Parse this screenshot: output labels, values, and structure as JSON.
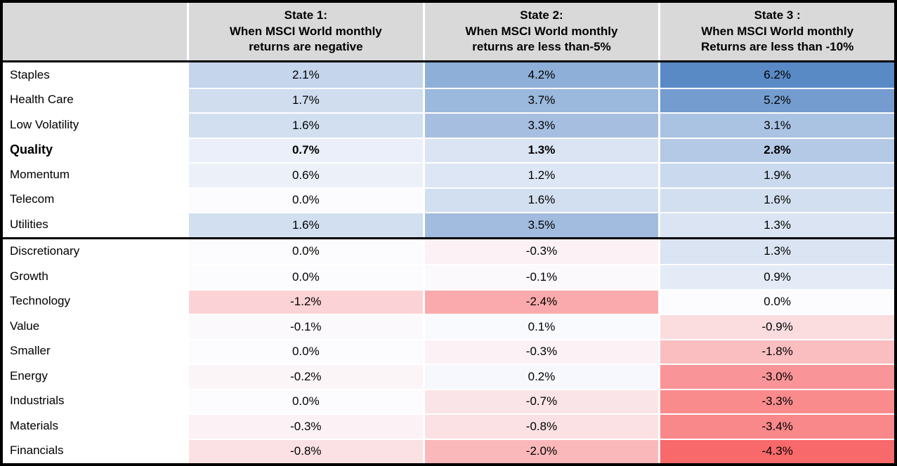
{
  "style": {
    "header_bg": "#d9d9d9",
    "border_color": "#000000",
    "text_color": "#000000"
  },
  "chart_data": {
    "type": "heatmap",
    "unit": "%",
    "columns": [
      {
        "lines": [
          "State 1:",
          "When MSCI World monthly",
          "returns are negative"
        ]
      },
      {
        "lines": [
          "State 2:",
          "When MSCI World monthly",
          "returns are less than-5%"
        ]
      },
      {
        "lines": [
          "State 3 :",
          "When MSCI World monthly",
          "Returns are less than -10%"
        ]
      }
    ],
    "groups": [
      {
        "rows": [
          {
            "label": "Staples",
            "values": [
              "2.1%",
              "4.2%",
              "6.2%"
            ],
            "numeric": [
              2.1,
              4.2,
              6.2
            ],
            "bold": false
          },
          {
            "label": "Health Care",
            "values": [
              "1.7%",
              "3.7%",
              "5.2%"
            ],
            "numeric": [
              1.7,
              3.7,
              5.2
            ],
            "bold": false
          },
          {
            "label": "Low Volatility",
            "values": [
              "1.6%",
              "3.3%",
              "3.1%"
            ],
            "numeric": [
              1.6,
              3.3,
              3.1
            ],
            "bold": false
          },
          {
            "label": "Quality",
            "values": [
              "0.7%",
              "1.3%",
              "2.8%"
            ],
            "numeric": [
              0.7,
              1.3,
              2.8
            ],
            "bold": true
          },
          {
            "label": "Momentum",
            "values": [
              "0.6%",
              "1.2%",
              "1.9%"
            ],
            "numeric": [
              0.6,
              1.2,
              1.9
            ],
            "bold": false
          },
          {
            "label": "Telecom",
            "values": [
              "0.0%",
              "1.6%",
              "1.6%"
            ],
            "numeric": [
              0.0,
              1.6,
              1.6
            ],
            "bold": false
          },
          {
            "label": "Utilities",
            "values": [
              "1.6%",
              "3.5%",
              "1.3%"
            ],
            "numeric": [
              1.6,
              3.5,
              1.3
            ],
            "bold": false
          }
        ]
      },
      {
        "rows": [
          {
            "label": "Discretionary",
            "values": [
              "0.0%",
              "-0.3%",
              "1.3%"
            ],
            "numeric": [
              0.0,
              -0.3,
              1.3
            ],
            "bold": false
          },
          {
            "label": "Growth",
            "values": [
              "0.0%",
              "-0.1%",
              "0.9%"
            ],
            "numeric": [
              0.0,
              -0.1,
              0.9
            ],
            "bold": false
          },
          {
            "label": "Technology",
            "values": [
              "-1.2%",
              "-2.4%",
              "0.0%"
            ],
            "numeric": [
              -1.2,
              -2.4,
              0.0
            ],
            "bold": false
          },
          {
            "label": "Value",
            "values": [
              "-0.1%",
              "0.1%",
              "-0.9%"
            ],
            "numeric": [
              -0.1,
              0.1,
              -0.9
            ],
            "bold": false
          },
          {
            "label": "Smaller",
            "values": [
              "0.0%",
              "-0.3%",
              "-1.8%"
            ],
            "numeric": [
              0.0,
              -0.3,
              -1.8
            ],
            "bold": false
          },
          {
            "label": "Energy",
            "values": [
              "-0.2%",
              "0.2%",
              "-3.0%"
            ],
            "numeric": [
              -0.2,
              0.2,
              -3.0
            ],
            "bold": false
          },
          {
            "label": "Industrials",
            "values": [
              "0.0%",
              "-0.7%",
              "-3.3%"
            ],
            "numeric": [
              0.0,
              -0.7,
              -3.3
            ],
            "bold": false
          },
          {
            "label": "Materials",
            "values": [
              "-0.3%",
              "-0.8%",
              "-3.4%"
            ],
            "numeric": [
              -0.3,
              -0.8,
              -3.4
            ],
            "bold": false
          },
          {
            "label": "Financials",
            "values": [
              "-0.8%",
              "-2.0%",
              "-4.3%"
            ],
            "numeric": [
              -0.8,
              -2.0,
              -4.3
            ],
            "bold": false
          }
        ]
      }
    ],
    "colorscale": {
      "min": -4.3,
      "mid": 0,
      "max": 6.2,
      "min_color": "#F8696B",
      "mid_color": "#FCFCFF",
      "max_color": "#5A8AC6"
    }
  }
}
